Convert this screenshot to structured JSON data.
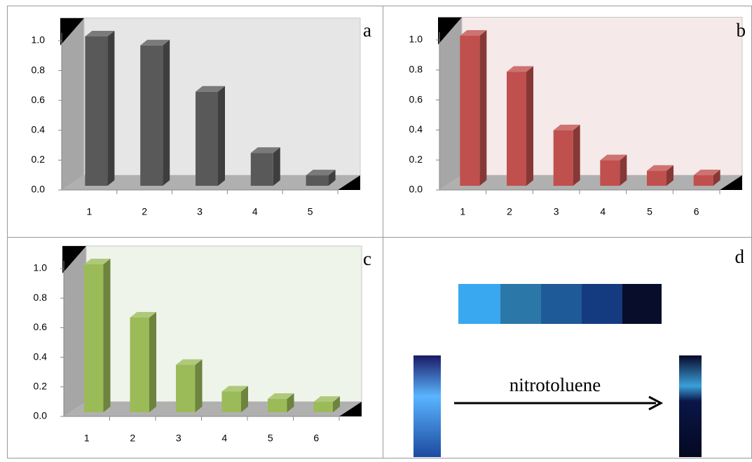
{
  "chart_data": [
    {
      "type": "bar3d",
      "label": "a",
      "categories": [
        "1",
        "2",
        "3",
        "4",
        "5"
      ],
      "values": [
        1.0,
        0.94,
        0.63,
        0.22,
        0.07
      ],
      "color": "#595959",
      "background": "#e6e6e6",
      "ylim": [
        0,
        1.1
      ],
      "yticks": [
        {
          "value": 0,
          "label": "0.0"
        },
        {
          "value": 0.2,
          "label": "0.2"
        },
        {
          "value": 0.4,
          "label": "0.4"
        },
        {
          "value": 0.6,
          "label": "0.6"
        },
        {
          "value": 0.8,
          "label": "0.8"
        },
        {
          "value": 1,
          "label": "1.0"
        }
      ]
    },
    {
      "type": "bar3d",
      "label": "b",
      "categories": [
        "1",
        "2",
        "3",
        "4",
        "5",
        "6"
      ],
      "values": [
        1.0,
        0.76,
        0.37,
        0.17,
        0.1,
        0.07
      ],
      "color": "#c0504d",
      "background": "#f5e9e9",
      "ylim": [
        0,
        1.1
      ],
      "yticks": [
        {
          "value": 0,
          "label": "0.0"
        },
        {
          "value": 0.2,
          "label": "0.2"
        },
        {
          "value": 0.4,
          "label": "0.4"
        },
        {
          "value": 0.6,
          "label": "0.6"
        },
        {
          "value": 0.8,
          "label": "0.8"
        },
        {
          "value": 1,
          "label": "1.0"
        }
      ]
    },
    {
      "type": "bar3d",
      "label": "c",
      "categories": [
        "1",
        "2",
        "3",
        "4",
        "5",
        "6"
      ],
      "values": [
        1.0,
        0.64,
        0.32,
        0.14,
        0.09,
        0.07
      ],
      "color": "#9bbb59",
      "background": "#eef4ea",
      "ylim": [
        0,
        1.1
      ],
      "yticks": [
        {
          "value": 0,
          "label": "0.0"
        },
        {
          "value": 0.2,
          "label": "0.2"
        },
        {
          "value": 0.4,
          "label": "0.4"
        },
        {
          "value": 0.6,
          "label": "0.6"
        },
        {
          "value": 0.8,
          "label": "0.8"
        },
        {
          "value": 1,
          "label": "1.0"
        }
      ]
    }
  ],
  "panel_d": {
    "label": "d",
    "caption": "nitrotoluene"
  }
}
